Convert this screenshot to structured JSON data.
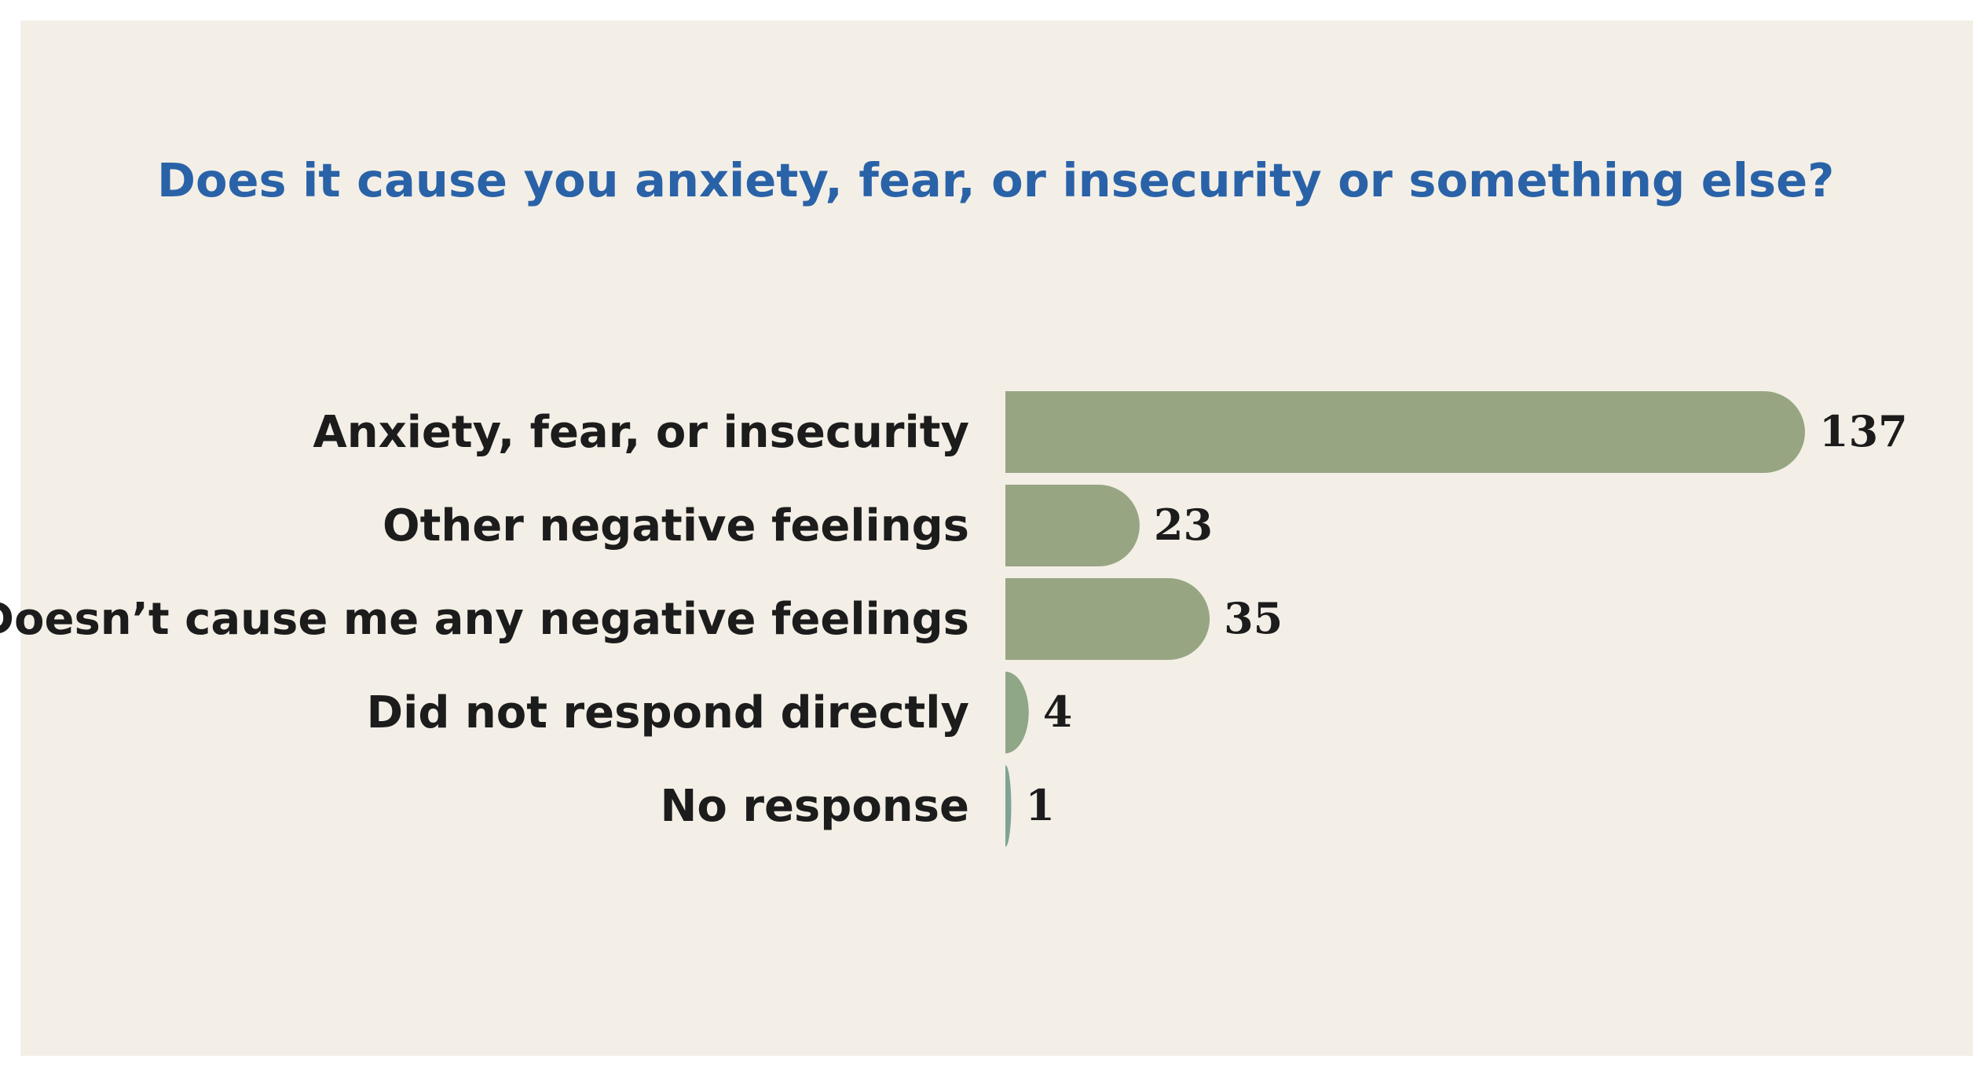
{
  "chart_data": {
    "type": "bar",
    "orientation": "horizontal",
    "title": "Does it cause you anxiety, fear, or insecurity or something else?",
    "categories": [
      "Anxiety, fear, or insecurity",
      "Other negative feelings",
      "Doesn’t cause me any negative feelings",
      "Did not respond directly",
      "No response"
    ],
    "values": [
      137,
      23,
      35,
      4,
      1
    ],
    "value_labels": [
      "137",
      "23",
      "35",
      "4",
      "1"
    ],
    "xlim": [
      0,
      137
    ],
    "grid": false,
    "legend": "none",
    "bar_colors": [
      "#97a583",
      "#97a583",
      "#97a583",
      "#8fa687",
      "#7fa394"
    ],
    "background_color": "#f3efe6",
    "title_color": "#2a62a8"
  }
}
